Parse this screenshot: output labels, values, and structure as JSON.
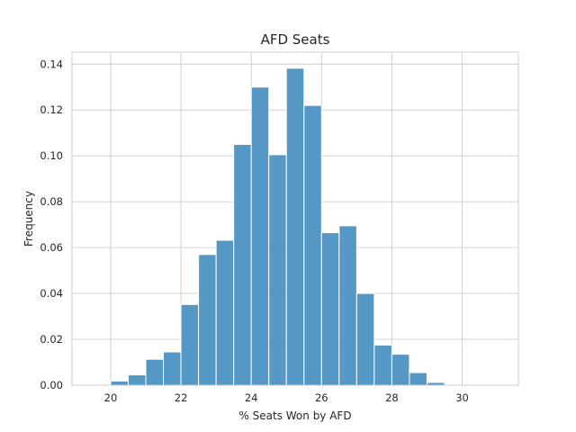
{
  "chart_data": {
    "type": "bar",
    "title": "AFD Seats",
    "xlabel": "% Seats Won by AFD",
    "ylabel": "Frequency",
    "xlim": [
      18.9,
      31.6
    ],
    "ylim": [
      0,
      0.1452
    ],
    "xticks": [
      20,
      22,
      24,
      26,
      28,
      30
    ],
    "yticks": [
      0.0,
      0.02,
      0.04,
      0.06,
      0.08,
      0.1,
      0.12,
      0.14
    ],
    "grid": true,
    "bin_edges": [
      20.0,
      20.5,
      21.0,
      21.5,
      22.0,
      22.5,
      23.0,
      23.5,
      24.0,
      24.5,
      25.0,
      25.5,
      26.0,
      26.5,
      27.0,
      27.5,
      28.0,
      28.5,
      29.0,
      29.5
    ],
    "values": [
      0.0018,
      0.0045,
      0.0113,
      0.0145,
      0.0352,
      0.057,
      0.0632,
      0.105,
      0.13,
      0.1005,
      0.1382,
      0.122,
      0.0665,
      0.0695,
      0.04,
      0.0175,
      0.0135,
      0.0055,
      0.0012
    ],
    "bar_color": "#4c92c3"
  }
}
